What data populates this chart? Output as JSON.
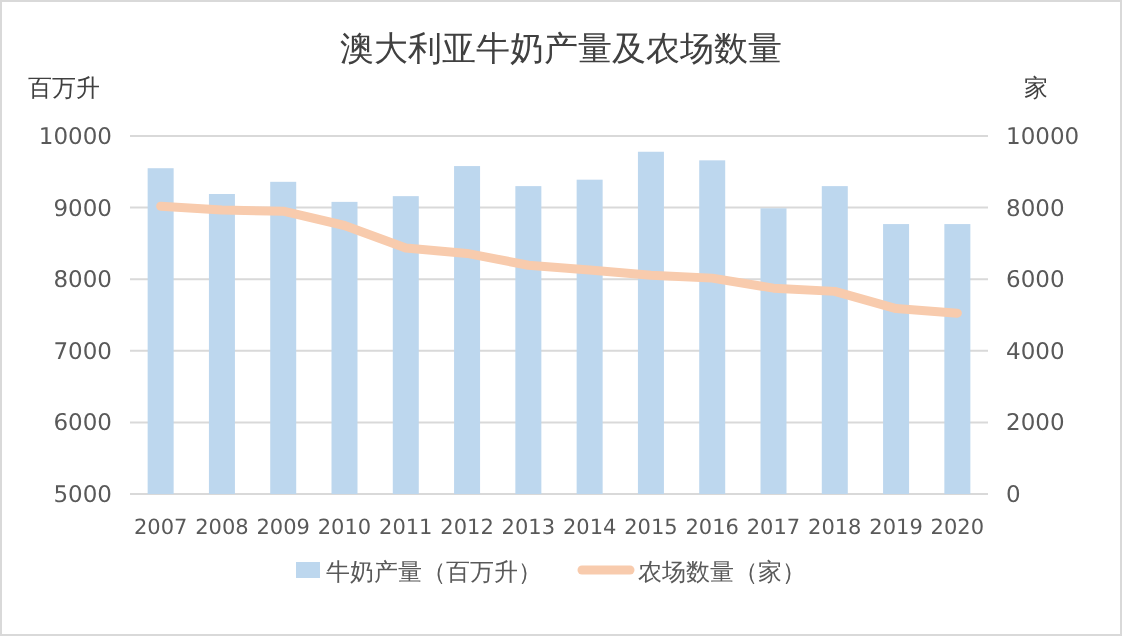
{
  "chart_data": {
    "type": "bar",
    "title": "澳大利亚牛奶产量及农场数量",
    "ylabel": "百万升",
    "y2label": "家",
    "categories": [
      "2007",
      "2008",
      "2009",
      "2010",
      "2011",
      "2012",
      "2013",
      "2014",
      "2015",
      "2016",
      "2017",
      "2018",
      "2019",
      "2020"
    ],
    "series": [
      {
        "name": "牛奶产量（百万升）",
        "color": "#bdd7ee",
        "values": [
          9550,
          9190,
          9360,
          9080,
          9160,
          9580,
          9300,
          9390,
          9780,
          9660,
          8990,
          9300,
          8770,
          8770
        ]
      },
      {
        "name": "农场数量（家）",
        "type": "line",
        "axis": "y2",
        "color": "#f8cbad",
        "values": [
          8040,
          7930,
          7900,
          7500,
          6870,
          6720,
          6390,
          6260,
          6110,
          6030,
          5750,
          5660,
          5180,
          5050
        ]
      }
    ],
    "ylim": [
      5000,
      10000
    ],
    "yticks": [
      5000,
      6000,
      7000,
      8000,
      9000,
      10000
    ],
    "y2lim": [
      0,
      10000
    ],
    "y2ticks": [
      0,
      2000,
      4000,
      6000,
      8000,
      10000
    ],
    "grid": "y",
    "legend": "bottom",
    "marker": "none",
    "line_style": "solid"
  }
}
